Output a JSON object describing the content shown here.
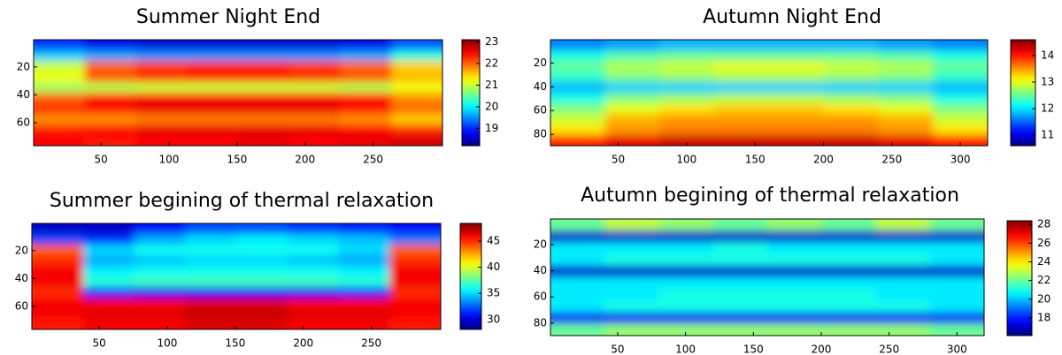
{
  "chart_data": [
    {
      "type": "heatmap",
      "title": "Summer Night End",
      "colormap": "jet",
      "xlim": [
        0.5,
        301
      ],
      "ylim": [
        0.5,
        76.5
      ],
      "xticks": [
        50,
        100,
        150,
        200,
        250
      ],
      "yticks": [
        20,
        40,
        60
      ],
      "clim": [
        18.2,
        23.1
      ],
      "cticks": [
        19,
        20,
        21,
        22,
        23
      ],
      "z": [
        [
          19.0,
          18.7,
          18.6,
          18.6,
          18.6,
          18.6,
          18.7,
          19.2
        ],
        [
          19.8,
          19.6,
          19.5,
          19.5,
          19.5,
          19.5,
          19.6,
          20.2
        ],
        [
          21.0,
          22.0,
          22.2,
          22.3,
          22.3,
          22.2,
          22.0,
          21.5
        ],
        [
          21.2,
          22.1,
          22.3,
          22.4,
          22.4,
          22.3,
          22.1,
          21.6
        ],
        [
          20.8,
          20.9,
          21.0,
          21.0,
          21.0,
          21.0,
          20.9,
          21.2
        ],
        [
          22.0,
          22.4,
          22.5,
          22.5,
          22.5,
          22.5,
          22.4,
          21.8
        ],
        [
          22.3,
          22.5,
          22.6,
          22.6,
          22.6,
          22.6,
          22.5,
          22.0
        ],
        [
          21.8,
          21.8,
          21.9,
          21.9,
          21.9,
          21.9,
          21.8,
          21.5
        ],
        [
          22.4,
          22.5,
          22.6,
          22.6,
          22.6,
          22.6,
          22.5,
          22.3
        ],
        [
          22.5,
          22.4,
          22.5,
          22.5,
          22.6,
          22.5,
          22.6,
          22.7
        ]
      ]
    },
    {
      "type": "heatmap",
      "title": "Autumn Night End",
      "colormap": "jet",
      "xlim": [
        0.5,
        320
      ],
      "ylim": [
        0.5,
        89.5
      ],
      "xticks": [
        50,
        100,
        150,
        200,
        250,
        300
      ],
      "yticks": [
        20,
        40,
        60,
        80
      ],
      "clim": [
        10.6,
        14.6
      ],
      "cticks": [
        11,
        12,
        13,
        14
      ],
      "z": [
        [
          11.6,
          11.7,
          11.8,
          11.8,
          11.8,
          11.8,
          11.7,
          11.6
        ],
        [
          12.2,
          12.4,
          12.5,
          12.5,
          12.5,
          12.5,
          12.4,
          12.2
        ],
        [
          12.5,
          12.8,
          12.9,
          13.0,
          13.0,
          12.9,
          12.8,
          12.5
        ],
        [
          12.3,
          12.6,
          12.7,
          12.8,
          12.8,
          12.7,
          12.6,
          12.3
        ],
        [
          11.8,
          11.9,
          11.9,
          11.9,
          11.9,
          11.9,
          11.9,
          11.8
        ],
        [
          12.2,
          12.6,
          12.7,
          12.8,
          12.8,
          12.7,
          12.6,
          12.2
        ],
        [
          12.6,
          13.0,
          13.2,
          13.3,
          13.3,
          13.2,
          13.0,
          12.6
        ],
        [
          12.9,
          13.4,
          13.5,
          13.5,
          13.5,
          13.5,
          13.4,
          12.9
        ],
        [
          13.2,
          13.5,
          13.6,
          13.6,
          13.6,
          13.6,
          13.5,
          13.2
        ],
        [
          14.0,
          14.2,
          14.3,
          14.3,
          14.3,
          14.3,
          14.2,
          14.0
        ]
      ]
    },
    {
      "type": "heatmap",
      "title": "Summer begining of thermal relaxation",
      "colormap": "jet",
      "xlim": [
        0.5,
        301
      ],
      "ylim": [
        0.5,
        76.5
      ],
      "xticks": [
        50,
        100,
        150,
        200,
        250
      ],
      "yticks": [
        20,
        40,
        60
      ],
      "clim": [
        28.1,
        48.4
      ],
      "cticks": [
        30,
        35,
        40,
        45
      ],
      "z": [
        [
          29.5,
          29.5,
          30.5,
          32,
          32,
          31.5,
          31,
          30.5
        ],
        [
          32,
          31.5,
          34,
          35,
          35.5,
          35,
          34.5,
          33
        ],
        [
          44,
          35,
          36,
          36,
          36,
          36,
          35,
          44
        ],
        [
          45,
          34,
          34.5,
          35,
          35,
          34.5,
          34,
          45
        ],
        [
          46,
          35.5,
          36,
          36,
          36,
          36,
          35.5,
          46
        ],
        [
          46,
          36.5,
          37,
          37,
          37,
          37,
          36.5,
          46
        ],
        [
          45,
          31,
          30.5,
          30.5,
          30.5,
          30.5,
          31,
          45
        ],
        [
          46,
          46,
          46,
          46.5,
          46.5,
          46,
          46,
          46
        ],
        [
          46,
          46.5,
          46.5,
          47,
          47,
          46.5,
          46.5,
          46
        ],
        [
          45.5,
          46,
          46,
          46.5,
          46.5,
          46,
          46,
          45.5
        ]
      ]
    },
    {
      "type": "heatmap",
      "title": "Autumn begining of thermal relaxation",
      "colormap": "jet",
      "xlim": [
        0.5,
        320
      ],
      "ylim": [
        0.5,
        89.5
      ],
      "xticks": [
        50,
        100,
        150,
        200,
        250,
        300
      ],
      "yticks": [
        20,
        40,
        60,
        80
      ],
      "clim": [
        16.1,
        28.4
      ],
      "cticks": [
        18,
        20,
        22,
        24,
        26,
        28
      ],
      "z": [
        [
          22,
          23,
          22.5,
          22,
          22.5,
          22,
          23,
          22
        ],
        [
          17,
          17,
          17,
          17,
          17,
          17,
          17,
          17
        ],
        [
          20.5,
          20.5,
          20.5,
          21,
          20.5,
          20.5,
          20.5,
          20.5
        ],
        [
          20.5,
          21,
          21,
          21,
          21,
          21,
          21,
          20.5
        ],
        [
          17,
          17,
          17,
          17,
          17,
          17,
          17,
          17
        ],
        [
          20.5,
          20.5,
          20.5,
          20.5,
          20.5,
          20.5,
          20.5,
          20.5
        ],
        [
          20.5,
          20.5,
          21,
          21,
          21,
          21,
          20.5,
          20.5
        ],
        [
          20.5,
          21,
          21,
          21,
          21,
          21,
          21,
          20.5
        ],
        [
          17.5,
          17.5,
          17.5,
          17.5,
          17.5,
          17.5,
          17.5,
          17.5
        ],
        [
          22,
          22.5,
          22.5,
          22.5,
          22.5,
          22.5,
          22.5,
          22
        ]
      ]
    }
  ]
}
